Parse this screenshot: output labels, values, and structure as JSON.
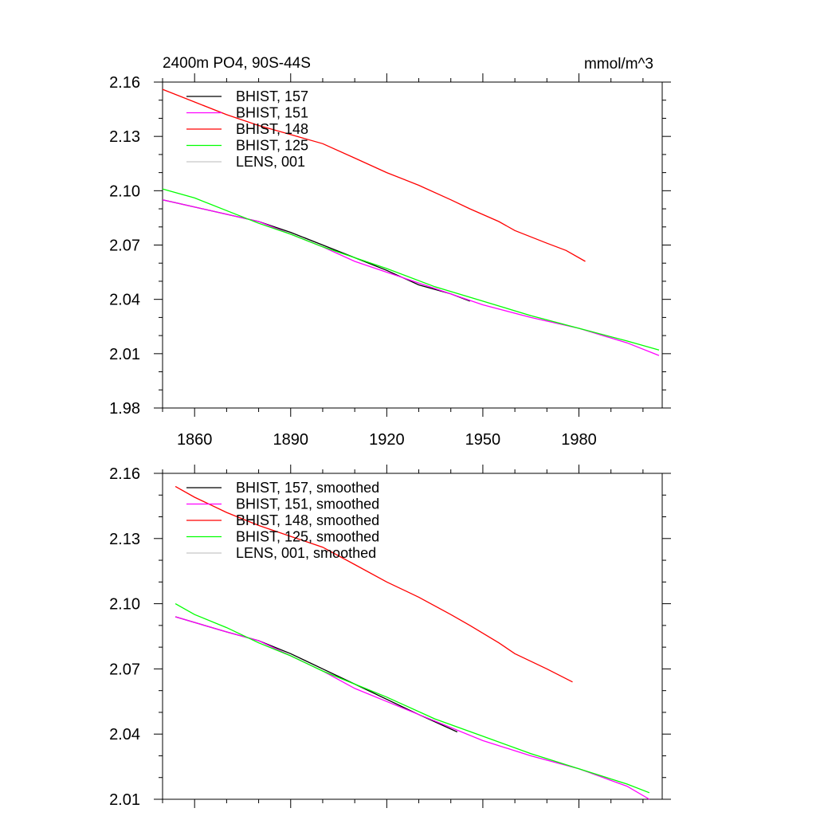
{
  "chart_data": [
    {
      "type": "line",
      "title_left": "2400m PO4, 90S-44S",
      "title_right": "mmol/m^3",
      "xlabel": "",
      "ylabel": "",
      "xlim": [
        1850,
        2006
      ],
      "ylim": [
        1.98,
        2.16
      ],
      "x_ticks": [
        1860,
        1890,
        1920,
        1950,
        1980
      ],
      "y_ticks": [
        1.98,
        2.01,
        2.04,
        2.07,
        2.1,
        2.13,
        2.16
      ],
      "y_tick_labels": [
        "1.98",
        "2.01",
        "2.04",
        "2.07",
        "2.10",
        "2.13",
        "2.16"
      ],
      "show_x_tick_labels": true,
      "legend_position": "top-left",
      "series": [
        {
          "name": "BHIST, 157",
          "color": "#000000",
          "x": [
            1850,
            1870,
            1880,
            1890,
            1900,
            1910,
            1920,
            1930,
            1940,
            1946
          ],
          "y": [
            2.095,
            2.087,
            2.083,
            2.077,
            2.07,
            2.063,
            2.056,
            2.048,
            2.043,
            2.039
          ]
        },
        {
          "name": "BHIST, 151",
          "color": "#ff00ff",
          "x": [
            1850,
            1870,
            1880,
            1890,
            1900,
            1910,
            1920,
            1935,
            1950,
            1965,
            1980,
            1995,
            2005
          ],
          "y": [
            2.095,
            2.087,
            2.083,
            2.076,
            2.069,
            2.061,
            2.055,
            2.046,
            2.037,
            2.03,
            2.024,
            2.016,
            2.009
          ]
        },
        {
          "name": "BHIST, 148",
          "color": "#ff0000",
          "x": [
            1850,
            1860,
            1870,
            1880,
            1890,
            1900,
            1910,
            1920,
            1930,
            1940,
            1946,
            1955,
            1960,
            1970,
            1976,
            1982
          ],
          "y": [
            2.156,
            2.149,
            2.142,
            2.136,
            2.131,
            2.126,
            2.118,
            2.11,
            2.103,
            2.095,
            2.09,
            2.083,
            2.078,
            2.071,
            2.067,
            2.061
          ]
        },
        {
          "name": "BHIST, 125",
          "color": "#00ff00",
          "x": [
            1850,
            1860,
            1870,
            1880,
            1890,
            1900,
            1910,
            1920,
            1935,
            1950,
            1965,
            1980,
            1995,
            2005
          ],
          "y": [
            2.101,
            2.096,
            2.089,
            2.082,
            2.076,
            2.069,
            2.063,
            2.057,
            2.047,
            2.039,
            2.031,
            2.024,
            2.017,
            2.012
          ]
        },
        {
          "name": "LENS, 001",
          "color": "#c8c8c8",
          "x": [],
          "y": []
        }
      ]
    },
    {
      "type": "line",
      "title_left": "",
      "title_right": "",
      "xlabel": "",
      "ylabel": "",
      "xlim": [
        1850,
        2006
      ],
      "ylim": [
        2.01,
        2.16
      ],
      "x_ticks": [
        1860,
        1890,
        1920,
        1950,
        1980
      ],
      "y_ticks": [
        2.01,
        2.04,
        2.07,
        2.1,
        2.13,
        2.16
      ],
      "y_tick_labels": [
        "2.01",
        "2.04",
        "2.07",
        "2.10",
        "2.13",
        "2.16"
      ],
      "show_x_tick_labels": false,
      "legend_position": "top-left",
      "series": [
        {
          "name": "BHIST, 157, smoothed",
          "color": "#000000",
          "x": [
            1854,
            1870,
            1880,
            1890,
            1900,
            1910,
            1920,
            1930,
            1942
          ],
          "y": [
            2.094,
            2.087,
            2.083,
            2.077,
            2.07,
            2.063,
            2.056,
            2.049,
            2.041
          ]
        },
        {
          "name": "BHIST, 151, smoothed",
          "color": "#ff00ff",
          "x": [
            1854,
            1870,
            1880,
            1890,
            1900,
            1910,
            1920,
            1935,
            1950,
            1965,
            1980,
            1995,
            2002
          ],
          "y": [
            2.094,
            2.087,
            2.083,
            2.076,
            2.069,
            2.061,
            2.055,
            2.046,
            2.037,
            2.03,
            2.024,
            2.016,
            2.01
          ]
        },
        {
          "name": "BHIST, 148, smoothed",
          "color": "#ff0000",
          "x": [
            1854,
            1860,
            1870,
            1880,
            1890,
            1900,
            1910,
            1920,
            1930,
            1940,
            1946,
            1955,
            1960,
            1970,
            1978
          ],
          "y": [
            2.154,
            2.149,
            2.142,
            2.136,
            2.131,
            2.126,
            2.118,
            2.11,
            2.103,
            2.095,
            2.09,
            2.082,
            2.077,
            2.07,
            2.064
          ]
        },
        {
          "name": "BHIST, 125, smoothed",
          "color": "#00ff00",
          "x": [
            1854,
            1860,
            1870,
            1880,
            1890,
            1900,
            1910,
            1920,
            1935,
            1950,
            1965,
            1980,
            1995,
            2002
          ],
          "y": [
            2.1,
            2.095,
            2.089,
            2.082,
            2.076,
            2.069,
            2.063,
            2.057,
            2.047,
            2.039,
            2.031,
            2.024,
            2.017,
            2.013
          ]
        },
        {
          "name": "LENS, 001, smoothed",
          "color": "#c8c8c8",
          "x": [],
          "y": []
        }
      ]
    }
  ]
}
